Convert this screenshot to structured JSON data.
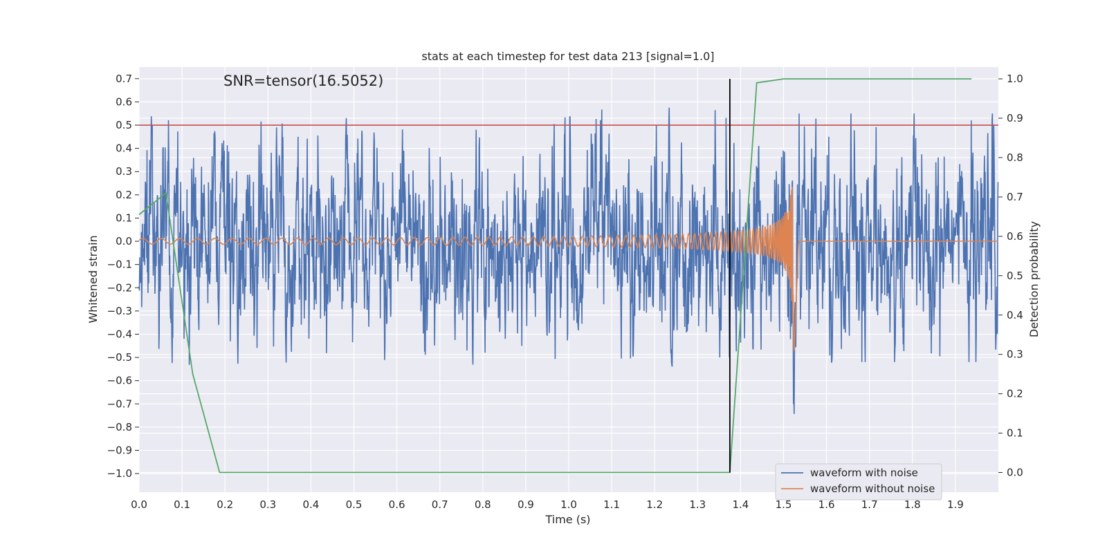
{
  "chart_data": {
    "type": "line",
    "title": "stats at each timestep for test data 213 [signal=1.0]",
    "annotation": "SNR=tensor(16.5052)",
    "xlabel": "Time (s)",
    "ylabel": "Whitened strain",
    "y2label": "Detection probability",
    "xlim": [
      0.0,
      2.0
    ],
    "ylim": [
      -1.08,
      0.75
    ],
    "y2lim": [
      -0.05,
      1.03
    ],
    "x_ticks": [
      "0.0",
      "0.1",
      "0.2",
      "0.3",
      "0.4",
      "0.5",
      "0.6",
      "0.7",
      "0.8",
      "0.9",
      "1.0",
      "1.1",
      "1.2",
      "1.3",
      "1.4",
      "1.5",
      "1.6",
      "1.7",
      "1.8",
      "1.9"
    ],
    "y_ticks": [
      "0.7",
      "0.6",
      "0.5",
      "0.4",
      "0.3",
      "0.2",
      "0.1",
      "0.0",
      "−0.1",
      "−0.2",
      "−0.3",
      "−0.4",
      "−0.5",
      "−0.6",
      "−0.7",
      "−0.8",
      "−0.9",
      "−1.0"
    ],
    "y2_ticks": [
      "1.0",
      "0.9",
      "0.8",
      "0.7",
      "0.6",
      "0.5",
      "0.4",
      "0.3",
      "0.2",
      "0.1",
      "0.0"
    ],
    "threshold": {
      "value": 0.5,
      "color": "#c44e52"
    },
    "detection_time": {
      "x": 1.375,
      "color": "#000000"
    },
    "detection_probability": {
      "name": "detection probability",
      "color": "#55a868",
      "x": [
        0.0,
        0.0625,
        0.125,
        0.1875,
        0.25,
        1.3125,
        1.375,
        1.4375,
        1.5,
        1.5625,
        1.9375
      ],
      "y": [
        0.655,
        0.71,
        0.25,
        0.0,
        0.0,
        0.0,
        0.0,
        0.99,
        1.0,
        1.0,
        1.0
      ]
    },
    "series": [
      {
        "name": "waveform with noise",
        "color": "#4c72b0"
      },
      {
        "name": "waveform without noise",
        "color": "#dd8452"
      }
    ],
    "legend_position": "lower-right",
    "grid": true
  }
}
